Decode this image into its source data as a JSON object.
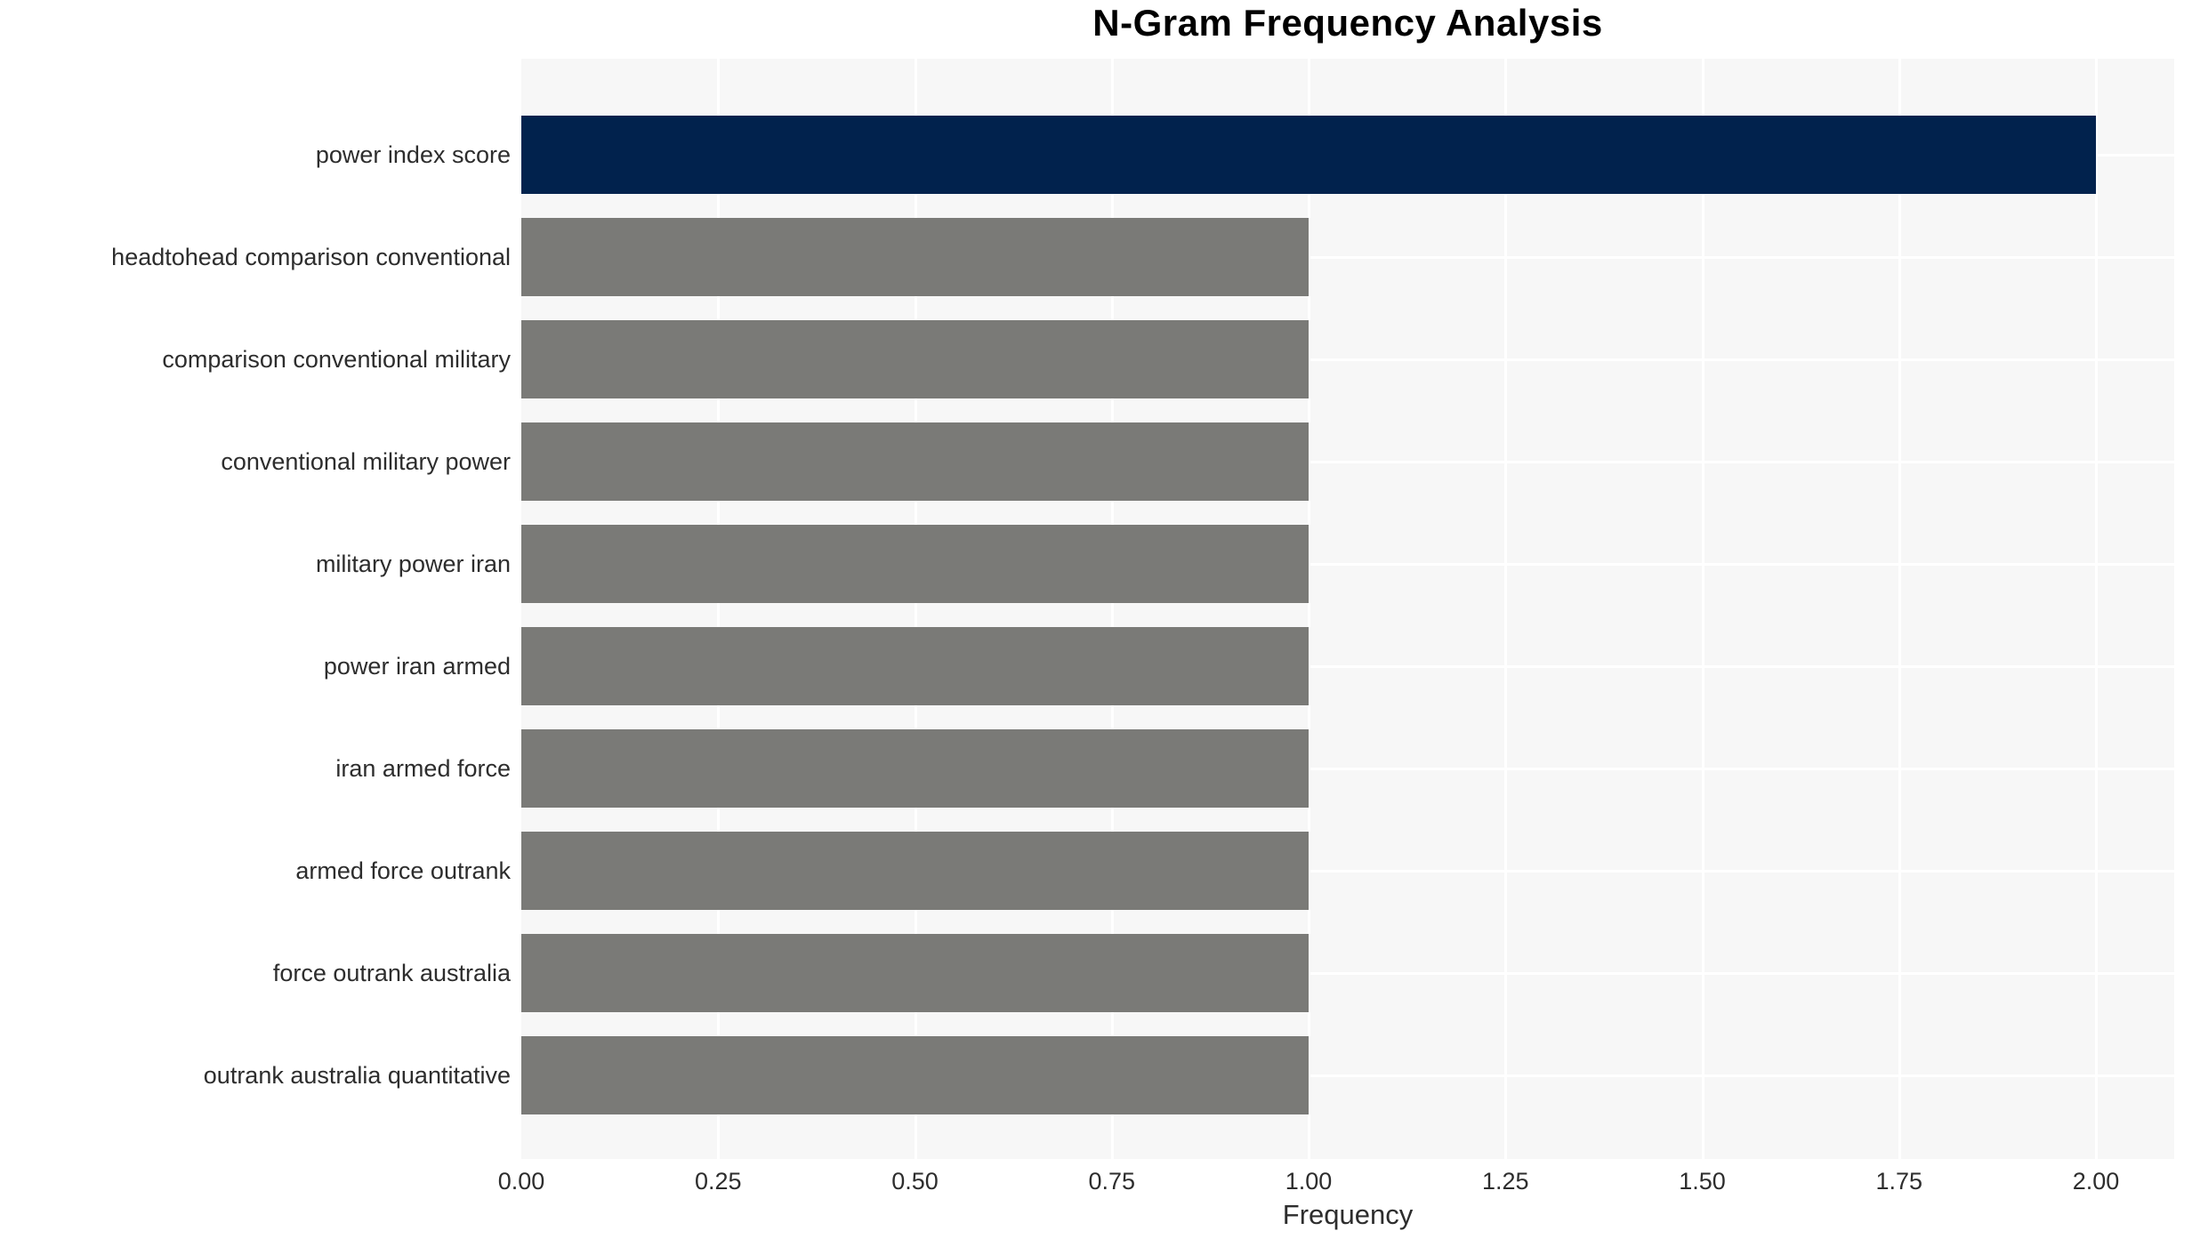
{
  "chart_data": {
    "type": "bar",
    "orientation": "horizontal",
    "title": "N-Gram Frequency Analysis",
    "xlabel": "Frequency",
    "ylabel": "",
    "categories": [
      "power index score",
      "headtohead comparison conventional",
      "comparison conventional military",
      "conventional military power",
      "military power iran",
      "power iran armed",
      "iran armed force",
      "armed force outrank",
      "force outrank australia",
      "outrank australia quantitative"
    ],
    "values": [
      2,
      1,
      1,
      1,
      1,
      1,
      1,
      1,
      1,
      1
    ],
    "xlim": [
      0,
      2.1
    ],
    "xticks": [
      "0.00",
      "0.25",
      "0.50",
      "0.75",
      "1.00",
      "1.25",
      "1.50",
      "1.75",
      "2.00"
    ],
    "grid": true,
    "legend": "none",
    "colors": {
      "highlight_bar": "#01224d",
      "default_bar": "#7a7a77",
      "plot_background": "#f7f7f7",
      "gridline": "#ffffff",
      "text": "#2d2d2d",
      "title_text": "#000000"
    },
    "bar_colors": [
      "#01224d",
      "#7a7a77",
      "#7a7a77",
      "#7a7a77",
      "#7a7a77",
      "#7a7a77",
      "#7a7a77",
      "#7a7a77",
      "#7a7a77",
      "#7a7a77"
    ]
  }
}
